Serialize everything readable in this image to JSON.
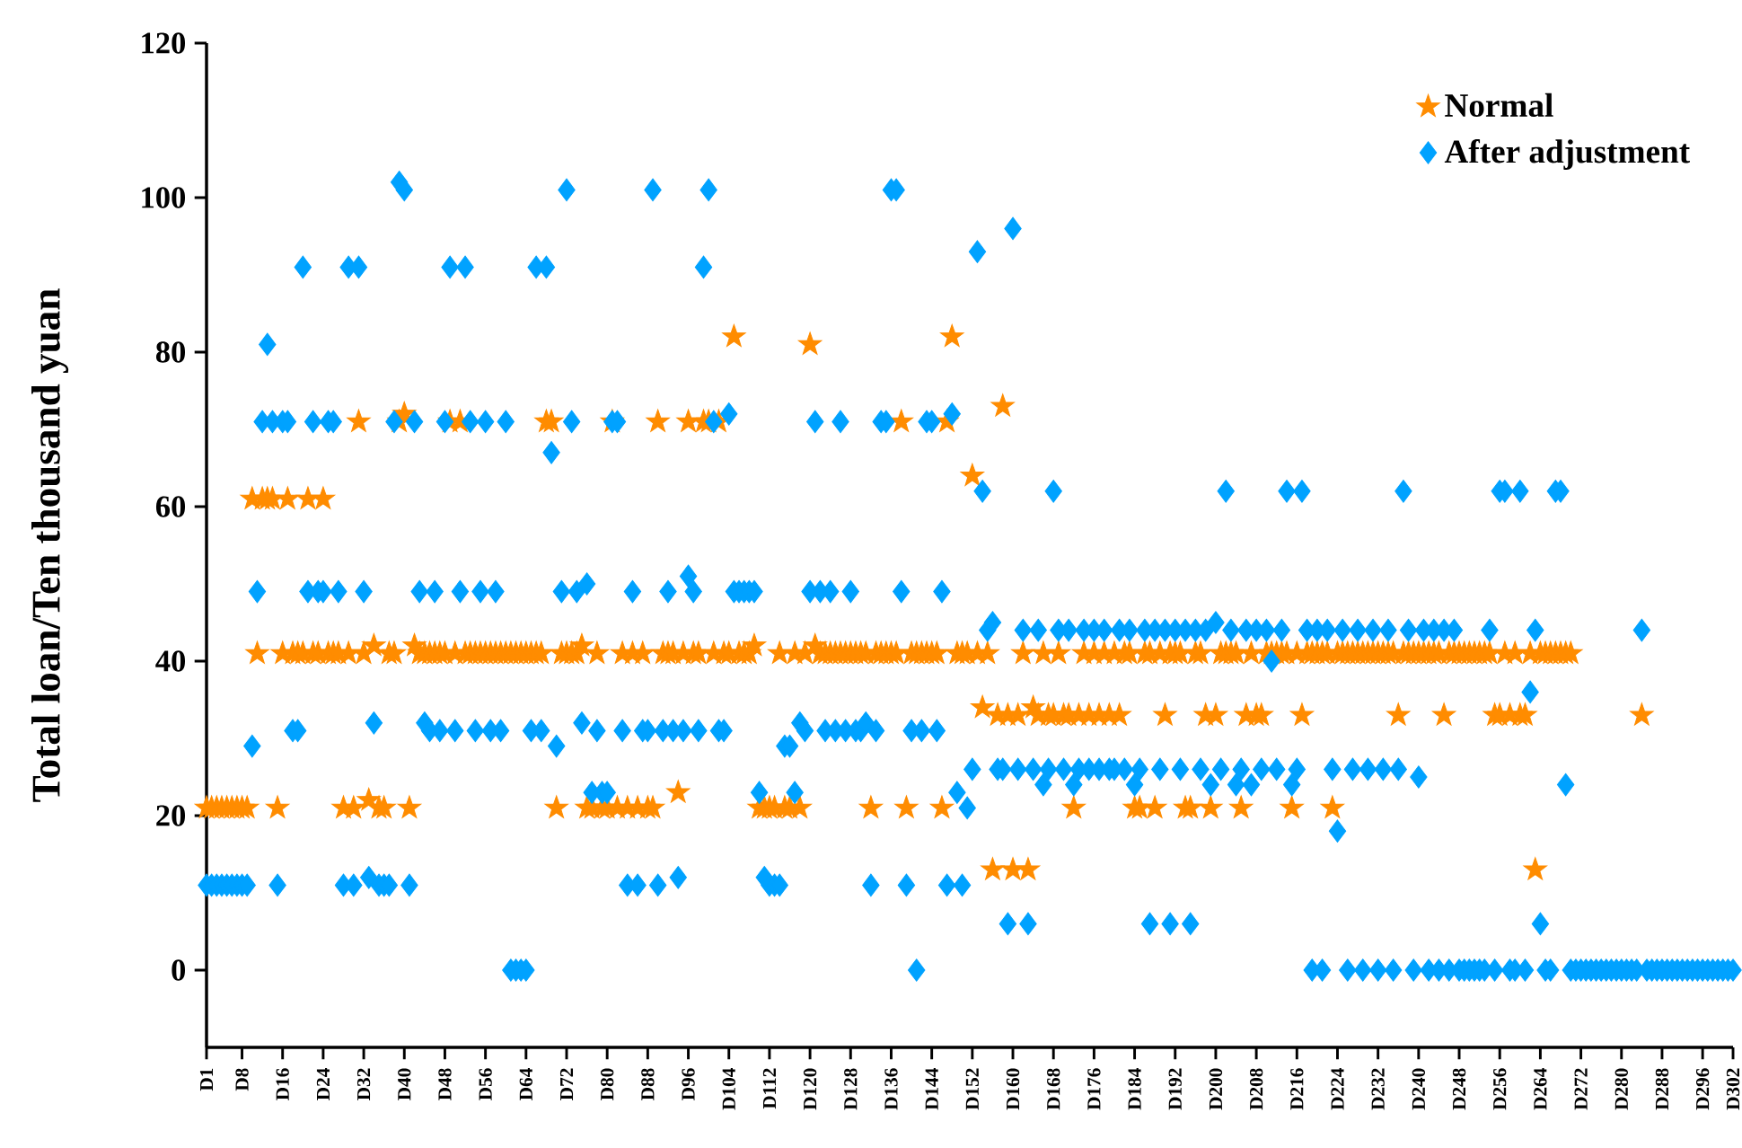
{
  "chart_data": {
    "type": "scatter",
    "ylabel": "Total loan/Ten thousand yuan",
    "categories": [
      "D1",
      null,
      null,
      null,
      null,
      null,
      null,
      "D8",
      null,
      null,
      null,
      null,
      null,
      null,
      null,
      "D16",
      null,
      null,
      null,
      null,
      null,
      null,
      null,
      "D24",
      null,
      null,
      null,
      null,
      null,
      null,
      null,
      "D32",
      null,
      null,
      null,
      null,
      null,
      null,
      null,
      "D40",
      null,
      null,
      null,
      null,
      null,
      null,
      null,
      "D48",
      null,
      null,
      null,
      null,
      null,
      null,
      null,
      "D56",
      null,
      null,
      null,
      null,
      null,
      null,
      null,
      "D64",
      null,
      null,
      null,
      null,
      null,
      null,
      null,
      "D72",
      null,
      null,
      null,
      null,
      null,
      null,
      null,
      "D80",
      null,
      null,
      null,
      null,
      null,
      null,
      null,
      "D88",
      null,
      null,
      null,
      null,
      null,
      null,
      null,
      "D96",
      null,
      null,
      null,
      null,
      null,
      null,
      null,
      "D104",
      null,
      null,
      null,
      null,
      null,
      null,
      null,
      "D112",
      null,
      null,
      null,
      null,
      null,
      null,
      null,
      "D120",
      null,
      null,
      null,
      null,
      null,
      null,
      null,
      "D128",
      null,
      null,
      null,
      null,
      null,
      null,
      null,
      "D136",
      null,
      null,
      null,
      null,
      null,
      null,
      null,
      "D144",
      null,
      null,
      null,
      null,
      null,
      null,
      null,
      "D152",
      null,
      null,
      null,
      null,
      null,
      null,
      null,
      "D160",
      null,
      null,
      null,
      null,
      null,
      null,
      null,
      "D168",
      null,
      null,
      null,
      null,
      null,
      null,
      null,
      "D176",
      null,
      null,
      null,
      null,
      null,
      null,
      null,
      "D184",
      null,
      null,
      null,
      null,
      null,
      null,
      null,
      "D192",
      null,
      null,
      null,
      null,
      null,
      null,
      null,
      "D200",
      null,
      null,
      null,
      null,
      null,
      null,
      null,
      "D208",
      null,
      null,
      null,
      null,
      null,
      null,
      null,
      "D216",
      null,
      null,
      null,
      null,
      null,
      null,
      null,
      "D224",
      null,
      null,
      null,
      null,
      null,
      null,
      null,
      "D232",
      null,
      null,
      null,
      null,
      null,
      null,
      null,
      "D240",
      null,
      null,
      null,
      null,
      null,
      null,
      null,
      "D248",
      null,
      null,
      null,
      null,
      null,
      null,
      null,
      "D256",
      null,
      null,
      null,
      null,
      null,
      null,
      null,
      "D264",
      null,
      null,
      null,
      null,
      null,
      null,
      null,
      "D272",
      null,
      null,
      null,
      null,
      null,
      null,
      null,
      "D280",
      null,
      null,
      null,
      null,
      null,
      null,
      null,
      "D288",
      null,
      null,
      null,
      null,
      null,
      null,
      null,
      "D296",
      null,
      null,
      null,
      null,
      null,
      "D302"
    ],
    "series": [
      {
        "name": "Normal",
        "color": "#ff8c00",
        "marker": "star",
        "values": [
          21,
          21,
          21,
          21,
          21,
          21,
          21,
          21,
          21,
          61,
          41,
          61,
          61,
          61,
          21,
          41,
          61,
          41,
          41,
          41,
          61,
          41,
          41,
          61,
          41,
          41,
          41,
          21,
          41,
          21,
          71,
          41,
          22,
          42,
          21,
          21,
          41,
          41,
          71,
          72,
          21,
          42,
          41,
          41,
          41,
          41,
          41,
          41,
          71,
          41,
          71,
          41,
          41,
          41,
          41,
          41,
          41,
          41,
          41,
          41,
          41,
          41,
          41,
          41,
          41,
          41,
          41,
          71,
          71,
          21,
          41,
          41,
          41,
          41,
          42,
          21,
          21,
          41,
          21,
          21,
          71,
          21,
          41,
          21,
          41,
          21,
          41,
          21,
          21,
          71,
          41,
          41,
          41,
          23,
          41,
          71,
          41,
          41,
          71,
          71,
          41,
          71,
          41,
          41,
          82,
          41,
          41,
          41,
          42,
          21,
          21,
          21,
          21,
          41,
          21,
          21,
          41,
          21,
          41,
          81,
          42,
          41,
          41,
          41,
          41,
          41,
          41,
          41,
          41,
          41,
          41,
          21,
          41,
          41,
          41,
          41,
          41,
          71,
          21,
          41,
          41,
          41,
          41,
          41,
          41,
          21,
          71,
          82,
          41,
          41,
          41,
          64,
          41,
          34,
          41,
          13,
          33,
          73,
          33,
          13,
          33,
          41,
          13,
          34,
          33,
          41,
          33,
          33,
          41,
          33,
          33,
          21,
          33,
          41,
          33,
          41,
          33,
          41,
          33,
          41,
          33,
          41,
          41,
          21,
          21,
          41,
          41,
          21,
          41,
          33,
          41,
          41,
          41,
          21,
          21,
          41,
          41,
          33,
          21,
          33,
          41,
          41,
          41,
          41,
          21,
          33,
          41,
          33,
          33,
          41,
          41,
          41,
          41,
          41,
          21,
          41,
          33,
          41,
          41,
          41,
          41,
          41,
          21,
          41,
          41,
          41,
          41,
          41,
          41,
          41,
          41,
          41,
          41,
          41,
          41,
          33,
          41,
          41,
          41,
          41,
          41,
          41,
          41,
          41,
          33,
          41,
          41,
          41,
          41,
          41,
          41,
          41,
          41,
          41,
          33,
          33,
          41,
          33,
          41,
          33,
          33,
          41,
          13,
          41,
          41,
          41,
          41,
          41,
          41,
          41,
          null,
          null,
          null,
          null,
          null,
          null,
          null,
          null,
          null,
          null,
          null,
          null,
          null,
          33,
          null,
          null,
          null,
          null,
          null,
          null,
          null,
          null,
          null,
          null,
          null,
          null,
          null,
          null,
          null,
          null,
          null,
          null
        ]
      },
      {
        "name": "After adjustment",
        "color": "#00a2ff",
        "marker": "diamond",
        "values": [
          11,
          11,
          11,
          11,
          11,
          11,
          11,
          11,
          11,
          29,
          49,
          71,
          81,
          71,
          11,
          71,
          71,
          31,
          31,
          91,
          49,
          71,
          49,
          49,
          71,
          71,
          49,
          11,
          91,
          11,
          91,
          49,
          12,
          32,
          11,
          11,
          11,
          71,
          102,
          101,
          11,
          71,
          49,
          32,
          31,
          49,
          31,
          71,
          91,
          31,
          49,
          91,
          71,
          31,
          49,
          71,
          31,
          49,
          31,
          71,
          0,
          0,
          0,
          0,
          31,
          91,
          31,
          91,
          67,
          29,
          49,
          101,
          71,
          49,
          32,
          50,
          23,
          31,
          23,
          23,
          71,
          71,
          31,
          11,
          49,
          11,
          31,
          31,
          101,
          11,
          31,
          49,
          31,
          12,
          31,
          51,
          49,
          31,
          91,
          101,
          71,
          31,
          31,
          72,
          49,
          49,
          49,
          49,
          49,
          23,
          12,
          11,
          11,
          11,
          29,
          29,
          23,
          32,
          31,
          49,
          71,
          49,
          31,
          49,
          31,
          71,
          31,
          49,
          31,
          31,
          32,
          11,
          31,
          71,
          71,
          101,
          101,
          49,
          11,
          31,
          0,
          31,
          71,
          71,
          31,
          49,
          11,
          72,
          23,
          11,
          21,
          26,
          93,
          62,
          44,
          45,
          26,
          26,
          6,
          96,
          26,
          44,
          6,
          26,
          44,
          24,
          26,
          62,
          44,
          26,
          44,
          24,
          26,
          44,
          26,
          44,
          26,
          44,
          26,
          26,
          44,
          26,
          44,
          24,
          26,
          44,
          6,
          44,
          26,
          44,
          6,
          44,
          26,
          44,
          6,
          44,
          26,
          44,
          24,
          45,
          26,
          62,
          44,
          24,
          26,
          44,
          24,
          44,
          26,
          44,
          40,
          26,
          44,
          62,
          24,
          26,
          62,
          44,
          0,
          44,
          0,
          44,
          26,
          18,
          44,
          0,
          26,
          44,
          0,
          26,
          44,
          0,
          26,
          44,
          0,
          26,
          62,
          44,
          0,
          25,
          44,
          0,
          44,
          0,
          44,
          0,
          44,
          0,
          0,
          0,
          0,
          0,
          0,
          44,
          0,
          62,
          62,
          0,
          0,
          62,
          0,
          36,
          44,
          6,
          0,
          0,
          62,
          62,
          24,
          0,
          0,
          0,
          0,
          0,
          0,
          0,
          0,
          0,
          0,
          0,
          0,
          0,
          0,
          44,
          0,
          0,
          0,
          0,
          0,
          0,
          0,
          0,
          0,
          0,
          0,
          0,
          0,
          0,
          0,
          0,
          0,
          0
        ]
      }
    ],
    "ylim": [
      -10,
      120
    ],
    "yticks": [
      0,
      20,
      40,
      60,
      80,
      100,
      120
    ],
    "legend": "top right"
  }
}
